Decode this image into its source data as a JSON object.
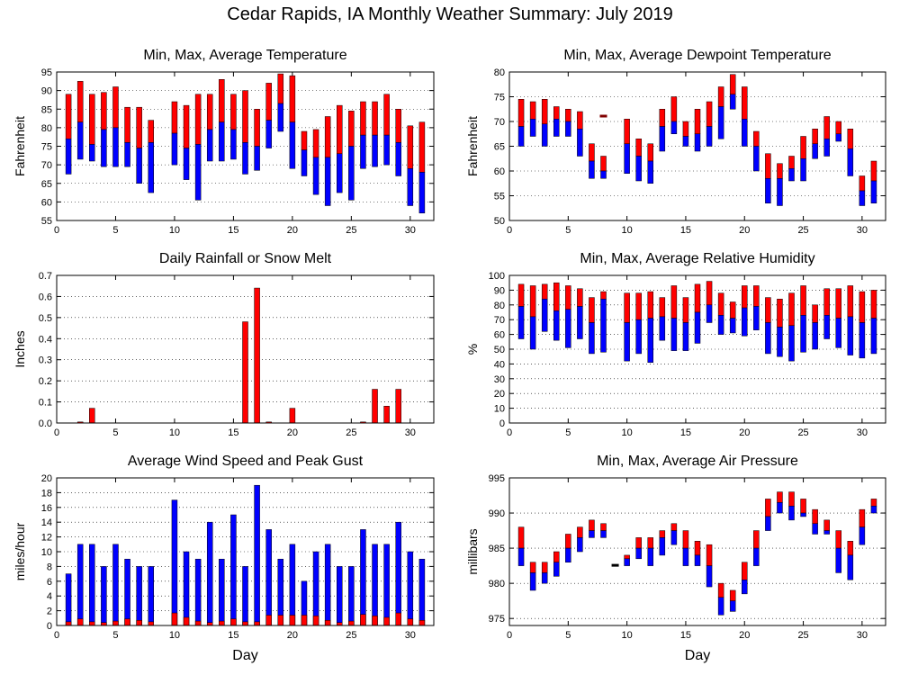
{
  "title": "Cedar Rapids, IA Monthly Weather Summary: July 2019",
  "colors": {
    "max": "#ff0000",
    "min": "#0000ff"
  },
  "chart_data": [
    {
      "type": "bar",
      "title": "Min, Max, Average Temperature",
      "xlabel": "",
      "ylabel": "Fahrenheit",
      "ylim": [
        55,
        95
      ],
      "yticks": [
        55,
        60,
        65,
        70,
        75,
        80,
        85,
        90,
        95
      ],
      "xlim": [
        0,
        32
      ],
      "xticks": [
        0,
        5,
        10,
        15,
        20,
        25,
        30
      ],
      "grid": true,
      "series": [],
      "days": [
        1,
        2,
        3,
        4,
        5,
        6,
        7,
        8,
        10,
        11,
        12,
        13,
        14,
        15,
        16,
        17,
        18,
        19,
        20,
        21,
        22,
        23,
        24,
        25,
        26,
        27,
        28,
        29,
        30,
        31
      ],
      "max": [
        89,
        92.5,
        89,
        89.5,
        91,
        85.5,
        85.5,
        82,
        87,
        86,
        89,
        89,
        93,
        89,
        90,
        85,
        92,
        94.5,
        94,
        79,
        79.5,
        83,
        86,
        84.5,
        87,
        87,
        89,
        85,
        80.5,
        81.5
      ],
      "avg": [
        77,
        81.5,
        75.5,
        79.5,
        80,
        76,
        74.5,
        76,
        78.5,
        74.5,
        75.5,
        79.5,
        81.5,
        79.5,
        76,
        75,
        82,
        86.5,
        81.5,
        74,
        72,
        72,
        73,
        75,
        78,
        78,
        78,
        76,
        69,
        68
      ],
      "min": [
        67.5,
        71.5,
        71,
        69.5,
        69.5,
        69.5,
        65,
        62.5,
        70,
        66,
        60.5,
        71,
        71,
        71.5,
        67.5,
        68.5,
        74.5,
        79,
        69,
        67,
        62,
        59,
        62.5,
        60.5,
        69,
        69.5,
        70,
        67,
        59,
        57
      ]
    },
    {
      "type": "bar",
      "title": "Min, Max, Average Dewpoint Temperature",
      "xlabel": "",
      "ylabel": "Fahrenheit",
      "ylim": [
        50,
        80
      ],
      "yticks": [
        50,
        55,
        60,
        65,
        70,
        75,
        80
      ],
      "xlim": [
        0,
        32
      ],
      "xticks": [
        0,
        5,
        10,
        15,
        20,
        25,
        30
      ],
      "grid": true,
      "series": [],
      "days": [
        1,
        2,
        3,
        4,
        5,
        6,
        7,
        8,
        10,
        11,
        12,
        13,
        14,
        15,
        16,
        17,
        18,
        19,
        20,
        21,
        22,
        23,
        24,
        25,
        26,
        27,
        28,
        29,
        30,
        31
      ],
      "max": [
        74.5,
        74,
        74.5,
        73,
        72.5,
        72,
        65.5,
        63,
        70.5,
        66.5,
        65.5,
        72.5,
        75,
        70,
        72.5,
        74,
        77,
        79.5,
        77,
        68,
        63.5,
        61.5,
        63,
        67,
        68.5,
        71,
        70,
        68.5,
        59,
        62
      ],
      "avg": [
        69,
        70.5,
        69.5,
        70.5,
        70,
        68.5,
        62,
        60,
        65.5,
        63,
        62,
        69,
        70,
        67,
        67.5,
        69,
        73,
        75.5,
        70.5,
        65,
        58.5,
        58.5,
        60.5,
        62.5,
        65.5,
        66.5,
        67.5,
        64.5,
        56,
        58
      ],
      "min": [
        65,
        67,
        65,
        67,
        67,
        63,
        58.5,
        58.5,
        59.5,
        58,
        57.5,
        64,
        67.5,
        65,
        64,
        65,
        66.5,
        72.5,
        65,
        60,
        53.5,
        53,
        58,
        58,
        62.5,
        63,
        66,
        59,
        53,
        53.5
      ],
      "marker": {
        "day": 8,
        "value": 71
      }
    },
    {
      "type": "bar",
      "title": "Daily Rainfall or Snow Melt",
      "xlabel": "",
      "ylabel": "Inches",
      "ylim": [
        0,
        0.7
      ],
      "yticks": [
        "0.0",
        "0.1",
        "0.2",
        "0.3",
        "0.4",
        "0.5",
        "0.6",
        "0.7"
      ],
      "xlim": [
        0,
        32
      ],
      "xticks": [
        0,
        5,
        10,
        15,
        20,
        25,
        30
      ],
      "grid": true,
      "series": [],
      "days": [
        2,
        3,
        16,
        17,
        18,
        20,
        26,
        27,
        28,
        29
      ],
      "values": [
        0.005,
        0.07,
        0.48,
        0.64,
        0.005,
        0.07,
        0.005,
        0.16,
        0.08,
        0.16
      ]
    },
    {
      "type": "bar",
      "title": "Min, Max, Average Relative Humidity",
      "xlabel": "",
      "ylabel": "%",
      "ylim": [
        0,
        100
      ],
      "yticks": [
        0,
        10,
        20,
        30,
        40,
        50,
        60,
        70,
        80,
        90,
        100
      ],
      "xlim": [
        0,
        32
      ],
      "xticks": [
        0,
        5,
        10,
        15,
        20,
        25,
        30
      ],
      "grid": true,
      "series": [],
      "days": [
        1,
        2,
        3,
        4,
        5,
        6,
        7,
        8,
        10,
        11,
        12,
        13,
        14,
        15,
        16,
        17,
        18,
        19,
        20,
        21,
        22,
        23,
        24,
        25,
        26,
        27,
        28,
        29,
        30,
        31
      ],
      "max": [
        94,
        93,
        94,
        95,
        93,
        91,
        85,
        89,
        88,
        88,
        89,
        85,
        93,
        85,
        94,
        96,
        88,
        82,
        93,
        93,
        85,
        84,
        88,
        93,
        80,
        91,
        91,
        93,
        89,
        90
      ],
      "avg": [
        79,
        72,
        84,
        76,
        77,
        79,
        68,
        84,
        68,
        70,
        71,
        72,
        71,
        68,
        75,
        80,
        73,
        71,
        78,
        79,
        68,
        65,
        66,
        73,
        68,
        73,
        71,
        72,
        68,
        71
      ],
      "min": [
        57,
        50,
        62,
        56,
        51,
        57,
        47,
        48,
        42,
        47,
        41,
        56,
        49,
        49,
        54,
        68,
        60,
        61,
        59,
        63,
        47,
        45,
        42,
        48,
        50,
        57,
        51,
        46,
        44,
        47
      ]
    },
    {
      "type": "bar",
      "title": "Average Wind Speed and Peak Gust",
      "xlabel": "Day",
      "ylabel": "miles/hour",
      "ylim": [
        0,
        20
      ],
      "yticks": [
        0,
        2,
        4,
        6,
        8,
        10,
        12,
        14,
        16,
        18,
        20
      ],
      "xlim": [
        0,
        32
      ],
      "xticks": [
        0,
        5,
        10,
        15,
        20,
        25,
        30
      ],
      "grid": true,
      "series": [],
      "days": [
        1,
        2,
        3,
        4,
        5,
        6,
        7,
        8,
        10,
        11,
        12,
        13,
        14,
        15,
        16,
        17,
        18,
        19,
        20,
        21,
        22,
        23,
        24,
        25,
        26,
        27,
        28,
        29,
        30,
        31
      ],
      "gust": [
        7,
        11,
        11,
        8,
        11,
        9,
        8,
        8,
        17,
        10,
        9,
        14,
        9,
        15,
        8,
        19,
        13,
        9,
        11,
        6,
        10,
        11,
        8,
        8,
        13,
        11,
        11,
        14,
        10,
        9
      ],
      "avg": [
        0.5,
        0.9,
        0.5,
        0.4,
        0.6,
        0.9,
        0.7,
        0.5,
        1.7,
        1.1,
        0.6,
        0.4,
        0.6,
        0.9,
        0.5,
        0.5,
        1.4,
        1.4,
        1.4,
        1.4,
        1.3,
        0.7,
        0.4,
        0.6,
        1.5,
        1.3,
        1.1,
        1.7,
        0.9,
        0.7
      ]
    },
    {
      "type": "bar",
      "title": "Min, Max, Average Air Pressure",
      "xlabel": "Day",
      "ylabel": "millibars",
      "ylim": [
        974,
        995
      ],
      "yticks": [
        975,
        980,
        985,
        990,
        995
      ],
      "xlim": [
        0,
        32
      ],
      "xticks": [
        0,
        5,
        10,
        15,
        20,
        25,
        30
      ],
      "grid": true,
      "series": [],
      "days": [
        1,
        2,
        3,
        4,
        5,
        6,
        7,
        8,
        10,
        11,
        12,
        13,
        14,
        15,
        16,
        17,
        18,
        19,
        20,
        21,
        22,
        23,
        24,
        25,
        26,
        27,
        28,
        29,
        30,
        31
      ],
      "max": [
        988,
        983,
        983,
        984.5,
        987,
        988,
        989,
        988.5,
        984,
        986.5,
        986.5,
        987.5,
        988.5,
        987.5,
        986,
        985.5,
        980,
        979,
        983,
        987.5,
        992,
        993,
        993,
        992,
        990.5,
        989,
        987.5,
        986,
        990.5,
        992
      ],
      "avg": [
        985,
        981.5,
        981.5,
        983,
        985,
        986.5,
        987.5,
        987.5,
        983.5,
        985,
        985,
        986.5,
        987.5,
        985,
        984,
        982.5,
        978,
        977.5,
        980.5,
        985,
        989.5,
        991.5,
        991,
        990,
        988.5,
        987.5,
        985,
        984,
        988,
        991
      ],
      "min": [
        982.5,
        979,
        980,
        981,
        983,
        984.5,
        986.5,
        986.5,
        982.5,
        983.5,
        982.5,
        984,
        985.5,
        982.5,
        982.5,
        979.5,
        975.5,
        976,
        978.5,
        982.5,
        987.5,
        990,
        989,
        989.5,
        987,
        987,
        981.5,
        980.5,
        985.5,
        990
      ],
      "marker": {
        "day": 9,
        "value": 982.5
      }
    }
  ]
}
